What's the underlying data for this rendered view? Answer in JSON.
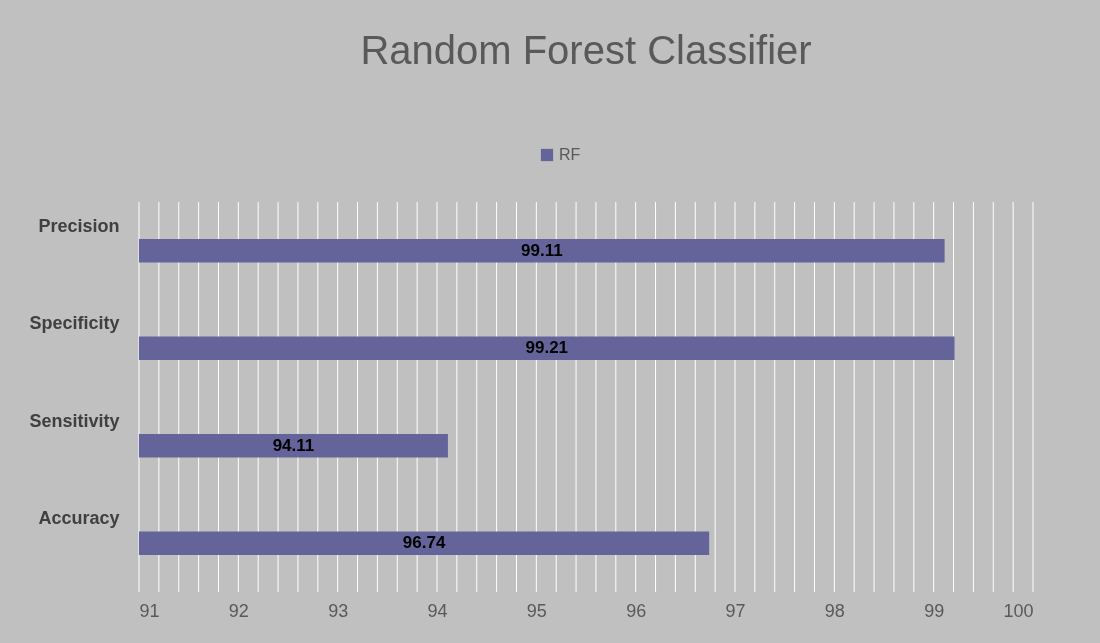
{
  "chart_data": {
    "type": "bar",
    "orientation": "horizontal",
    "title": "Random Forest Classifier",
    "categories": [
      "Precision",
      "Specificity",
      "Sensitivity",
      "Accuracy"
    ],
    "series": [
      {
        "name": "RF",
        "color": "#65649a",
        "values": [
          99.11,
          99.21,
          94.11,
          96.74
        ]
      }
    ],
    "xlim": [
      91,
      100
    ],
    "xticks": [
      91,
      {
        "value": 91.2,
        "label": null
      },
      {
        "value": 91.4,
        "label": null
      },
      {
        "value": 91.6,
        "label": null
      },
      {
        "value": 91.8,
        "label": null
      },
      92,
      {
        "value": 92.2,
        "label": null
      },
      {
        "value": 92.4,
        "label": null
      },
      {
        "value": 92.6,
        "label": null
      },
      {
        "value": 92.8,
        "label": null
      },
      93,
      {
        "value": 93.2,
        "label": null
      },
      {
        "value": 93.4,
        "label": null
      },
      {
        "value": 93.6,
        "label": null
      },
      {
        "value": 93.8,
        "label": null
      },
      94,
      {
        "value": 94.2,
        "label": null
      },
      {
        "value": 94.4,
        "label": null
      },
      {
        "value": 94.6,
        "label": null
      },
      {
        "value": 94.8,
        "label": null
      },
      95,
      {
        "value": 95.2,
        "label": null
      },
      {
        "value": 95.4,
        "label": null
      },
      {
        "value": 95.6,
        "label": null
      },
      {
        "value": 95.8,
        "label": null
      },
      96,
      {
        "value": 96.2,
        "label": null
      },
      {
        "value": 96.4,
        "label": null
      },
      {
        "value": 96.6,
        "label": null
      },
      {
        "value": 96.8,
        "label": null
      },
      97,
      {
        "value": 97.2,
        "label": null
      },
      {
        "value": 97.4,
        "label": null
      },
      {
        "value": 97.6,
        "label": null
      },
      {
        "value": 97.8,
        "label": null
      },
      98,
      {
        "value": 98.2,
        "label": null
      },
      {
        "value": 98.4,
        "label": null
      },
      {
        "value": 98.6,
        "label": null
      },
      {
        "value": 98.8,
        "label": null
      },
      99,
      {
        "value": 99.2,
        "label": null
      },
      {
        "value": 99.4,
        "label": null
      },
      {
        "value": 99.6,
        "label": null
      },
      {
        "value": 99.8,
        "label": null
      },
      100
    ],
    "grid": "x",
    "legend": "top",
    "data_labels": true
  }
}
